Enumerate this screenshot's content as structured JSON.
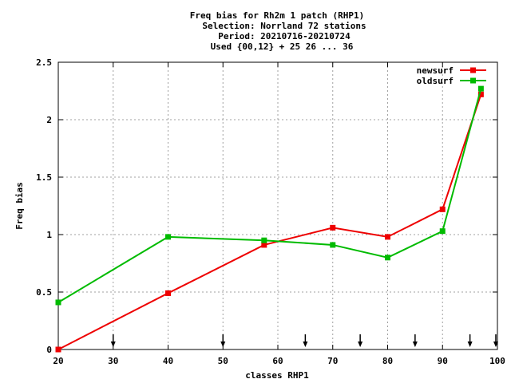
{
  "chart_data": {
    "type": "line",
    "title_lines": [
      "Freq bias  for Rh2m 1 patch (RHP1)",
      "Selection: Norrland     72 stations",
      "Period: 20210716-20210724",
      "Used {00,12} + 25 26 ... 36"
    ],
    "xlabel": "classes RHP1",
    "ylabel": "Freq bias",
    "xlim": [
      20,
      100
    ],
    "ylim": [
      0,
      2.5
    ],
    "x_ticks": [
      "20",
      "30",
      "40",
      "50",
      "60",
      "70",
      "80",
      "90",
      "100"
    ],
    "y_ticks": [
      "0",
      "0.5",
      "1",
      "1.5",
      "2",
      "2.5"
    ],
    "grid": true,
    "legend_position": "top-right",
    "series": [
      {
        "name": "newsurf",
        "color": "#ee0000",
        "x": [
          20,
          40,
          57.5,
          70,
          80,
          90,
          97
        ],
        "y": [
          0.0,
          0.49,
          0.91,
          1.06,
          0.98,
          1.22,
          2.22
        ]
      },
      {
        "name": "oldsurf",
        "color": "#00bb00",
        "x": [
          20,
          40,
          57.5,
          70,
          80,
          90,
          97
        ],
        "y": [
          0.41,
          0.98,
          0.95,
          0.91,
          0.8,
          1.03,
          2.27
        ]
      }
    ],
    "arrow_markers_x": [
      30,
      50,
      65,
      75,
      85,
      95,
      100
    ]
  }
}
